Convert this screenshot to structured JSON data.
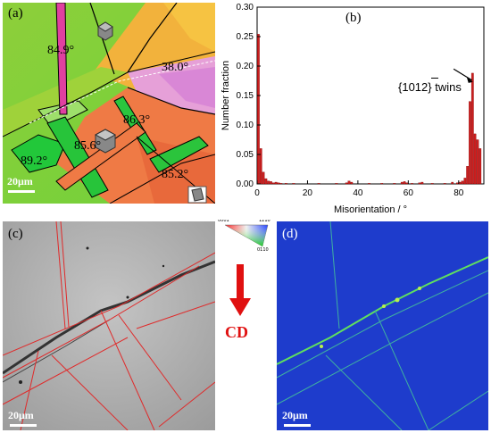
{
  "panels": {
    "a": {
      "label": "(a)",
      "angles": [
        "84.9°",
        "38.0°",
        "86.3°",
        "89.2°",
        "85.6°",
        "85.2°"
      ],
      "scale_bar": "20μm"
    },
    "b": {
      "label": "(b)",
      "annotation": "{1012} twins",
      "annotation_bar_index": "1"
    },
    "c": {
      "label": "(c)",
      "scale_bar": "20μm"
    },
    "d": {
      "label": "(d)",
      "scale_bar": "20μm"
    },
    "legend": {
      "corners": [
        "0001",
        "1210",
        "0110"
      ],
      "direction": "CD",
      "arrow_color": "#e01010"
    }
  },
  "chart_data": {
    "type": "bar",
    "xlabel": "Misorientation / °",
    "ylabel": "Number fraction",
    "xlim": [
      0,
      90
    ],
    "ylim": [
      0,
      0.3
    ],
    "xticks": [
      0,
      20,
      40,
      60,
      80
    ],
    "yticks": [
      0.0,
      0.05,
      0.1,
      0.15,
      0.2,
      0.25,
      0.3
    ],
    "bar_color": "#cc1f1f",
    "bars": [
      {
        "x": 1,
        "y": 0.254
      },
      {
        "x": 2,
        "y": 0.06
      },
      {
        "x": 3,
        "y": 0.02
      },
      {
        "x": 4,
        "y": 0.009
      },
      {
        "x": 5,
        "y": 0.005
      },
      {
        "x": 6,
        "y": 0.004
      },
      {
        "x": 7,
        "y": 0.002
      },
      {
        "x": 8,
        "y": 0.003
      },
      {
        "x": 9,
        "y": 0.002
      },
      {
        "x": 10,
        "y": 0.001
      },
      {
        "x": 12,
        "y": 0.001
      },
      {
        "x": 15,
        "y": 0.001
      },
      {
        "x": 25,
        "y": 0.001
      },
      {
        "x": 32,
        "y": 0.001
      },
      {
        "x": 36,
        "y": 0.002
      },
      {
        "x": 37,
        "y": 0.005
      },
      {
        "x": 38,
        "y": 0.003
      },
      {
        "x": 45,
        "y": 0.001
      },
      {
        "x": 50,
        "y": 0.001
      },
      {
        "x": 55,
        "y": 0.001
      },
      {
        "x": 58,
        "y": 0.003
      },
      {
        "x": 59,
        "y": 0.004
      },
      {
        "x": 60,
        "y": 0.002
      },
      {
        "x": 62,
        "y": 0.001
      },
      {
        "x": 65,
        "y": 0.002
      },
      {
        "x": 66,
        "y": 0.003
      },
      {
        "x": 70,
        "y": 0.001
      },
      {
        "x": 75,
        "y": 0.001
      },
      {
        "x": 78,
        "y": 0.003
      },
      {
        "x": 80,
        "y": 0.002
      },
      {
        "x": 81,
        "y": 0.003
      },
      {
        "x": 82,
        "y": 0.005
      },
      {
        "x": 83,
        "y": 0.01
      },
      {
        "x": 84,
        "y": 0.03
      },
      {
        "x": 85,
        "y": 0.14
      },
      {
        "x": 86,
        "y": 0.188
      },
      {
        "x": 87,
        "y": 0.085
      },
      {
        "x": 88,
        "y": 0.075
      },
      {
        "x": 89,
        "y": 0.06
      }
    ]
  }
}
